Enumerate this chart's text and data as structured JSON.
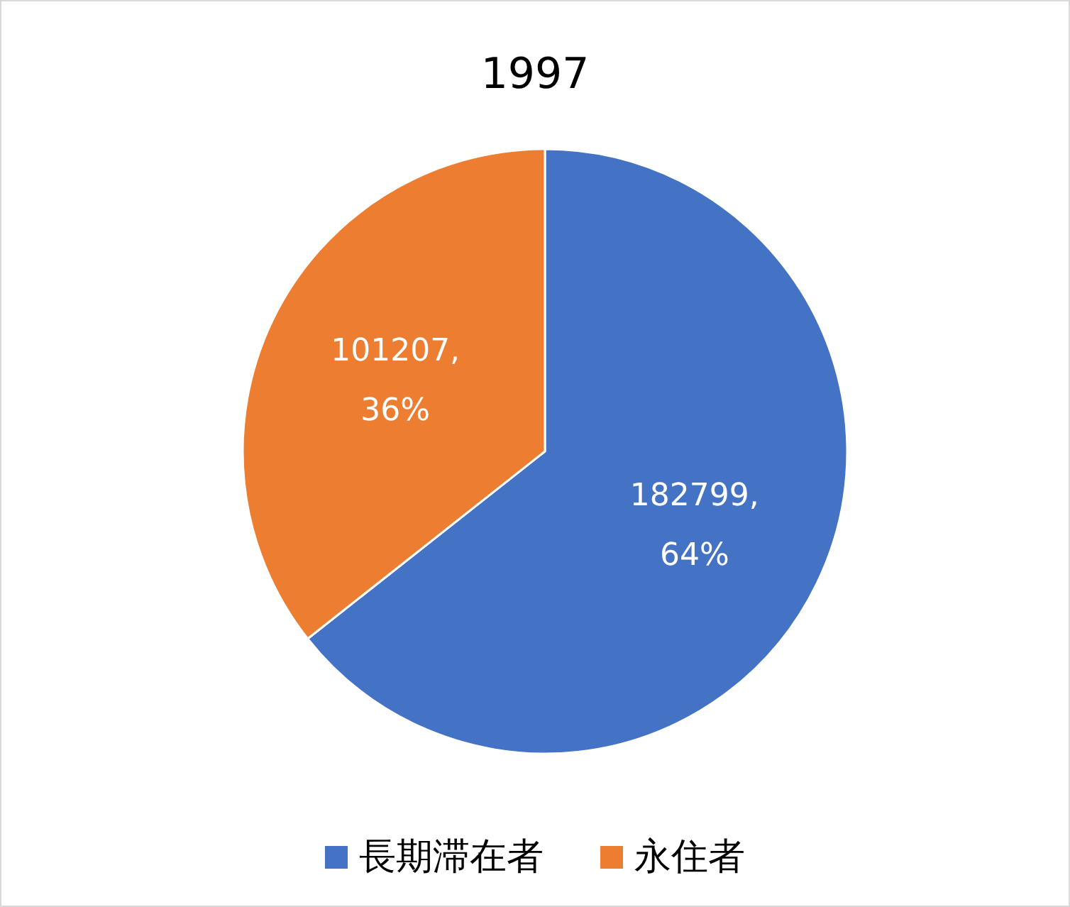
{
  "chart_data": {
    "type": "pie",
    "title": "1997",
    "categories": [
      "長期滞在者",
      "永住者"
    ],
    "values": [
      182799,
      101207
    ],
    "colors": [
      "#4472c4",
      "#ed7d31"
    ],
    "value_labels": [
      "182799,\n64%",
      "101207,\n36%"
    ],
    "legend": "bottom"
  }
}
